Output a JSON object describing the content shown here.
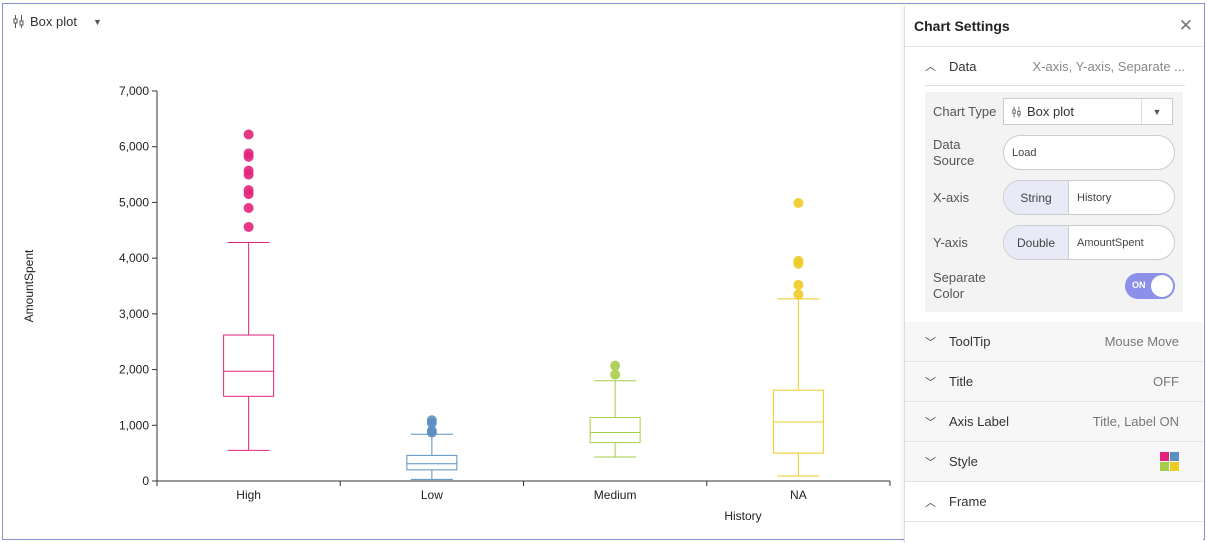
{
  "chart_type_button": {
    "label": "Box plot"
  },
  "chart_data": {
    "type": "box",
    "xlabel": "History",
    "ylabel": "AmountSpent",
    "ylim": [
      0,
      7000
    ],
    "yticks": [
      "0",
      "1,000",
      "2,000",
      "3,000",
      "4,000",
      "5,000",
      "6,000",
      "7,000"
    ],
    "tick_values": [
      0,
      1000,
      2000,
      3000,
      4000,
      5000,
      6000,
      7000
    ],
    "categories": [
      "High",
      "Low",
      "Medium",
      "NA"
    ],
    "boxes": [
      {
        "category": "High",
        "color": "#e2237a",
        "min": 550,
        "q1": 1520,
        "median": 1970,
        "q3": 2620,
        "max": 4280,
        "outliers": [
          4560,
          4900,
          5150,
          5220,
          5500,
          5570,
          5820,
          5880,
          6220
        ]
      },
      {
        "category": "Low",
        "color": "#5b8fc0",
        "min": 30,
        "q1": 200,
        "median": 310,
        "q3": 460,
        "max": 840,
        "outliers": [
          870,
          900,
          1040,
          1090
        ]
      },
      {
        "category": "Medium",
        "color": "#a6cd4a",
        "min": 430,
        "q1": 690,
        "median": 870,
        "q3": 1140,
        "max": 1800,
        "outliers": [
          1910,
          2070
        ]
      },
      {
        "category": "NA",
        "color": "#eecb24",
        "min": 90,
        "q1": 500,
        "median": 1060,
        "q3": 1630,
        "max": 3270,
        "outliers": [
          3350,
          3520,
          3900,
          3950,
          4990
        ]
      }
    ]
  },
  "settings": {
    "title": "Chart Settings",
    "data_section": {
      "label": "Data",
      "summary": "X-axis, Y-axis, Separate ..."
    },
    "chart_type": {
      "label": "Chart Type",
      "value": "Box plot"
    },
    "data_source": {
      "label_line1": "Data",
      "label_line2": "Source",
      "value": "Load"
    },
    "x_axis": {
      "label": "X-axis",
      "type": "String",
      "field": "History"
    },
    "y_axis": {
      "label": "Y-axis",
      "type": "Double",
      "field": "AmountSpent"
    },
    "separate_color": {
      "label_line1": "Separate",
      "label_line2": "Color",
      "state": "ON"
    },
    "tooltip": {
      "label": "ToolTip",
      "summary": "Mouse Move"
    },
    "title_section": {
      "label": "Title",
      "summary": "OFF"
    },
    "axis_label": {
      "label": "Axis Label",
      "summary": "Title, Label ON"
    },
    "style": {
      "label": "Style",
      "swatch_colors": [
        "#e2237a",
        "#5b8fc0",
        "#a6cd4a",
        "#eecb24"
      ]
    },
    "frame": {
      "label": "Frame"
    }
  }
}
